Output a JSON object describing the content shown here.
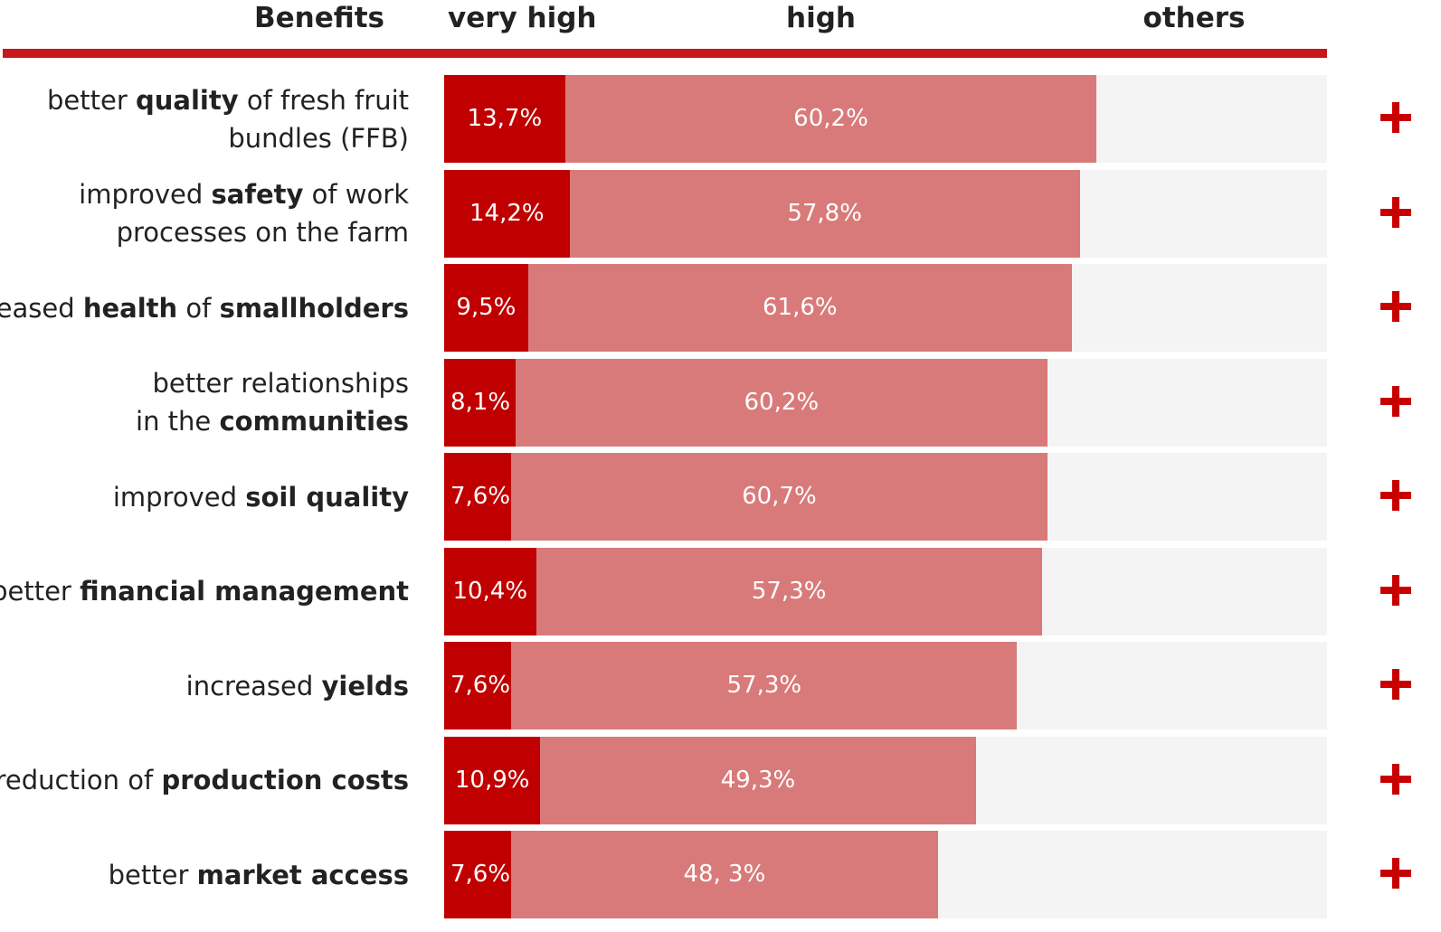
{
  "colors": {
    "very_high": "#c00000",
    "high": "#d97a7a",
    "others": "#f4f4f4",
    "rule": "#c8161d",
    "plus": "#c80000"
  },
  "icons": {
    "row_marker": "plus-icon"
  },
  "chart_data": {
    "type": "bar",
    "orientation": "horizontal",
    "stacked": true,
    "headers": {
      "categories": "Benefits",
      "very_high": "very high",
      "high": "high",
      "others": "others"
    },
    "categories": [
      "better quality of fresh fruit bundles (FFB)",
      "improved safety of work processes on the farm",
      "eased health of smallholders",
      "better relationships in the communities",
      "improved soil quality",
      "better financial management",
      "increased yields",
      "reduction of production costs",
      "better market access"
    ],
    "category_lines": [
      [
        [
          [
            "better ",
            false
          ],
          [
            "quality",
            true
          ],
          [
            " of fresh fruit",
            false
          ]
        ],
        [
          [
            "bundles (FFB)",
            false
          ]
        ]
      ],
      [
        [
          [
            "improved ",
            false
          ],
          [
            "safety",
            true
          ],
          [
            " of work",
            false
          ]
        ],
        [
          [
            "processes on the farm",
            false
          ]
        ]
      ],
      [
        [
          [
            "eased ",
            false
          ],
          [
            "health",
            true
          ],
          [
            " of ",
            false
          ],
          [
            "smallholders",
            true
          ]
        ]
      ],
      [
        [
          [
            "better relationships",
            false
          ]
        ],
        [
          [
            "in the ",
            false
          ],
          [
            "communities",
            true
          ]
        ]
      ],
      [
        [
          [
            "improved ",
            false
          ],
          [
            "soil quality",
            true
          ]
        ]
      ],
      [
        [
          [
            "better ",
            false
          ],
          [
            "financial management",
            true
          ]
        ]
      ],
      [
        [
          [
            "increased ",
            false
          ],
          [
            "yields",
            true
          ]
        ]
      ],
      [
        [
          [
            "reduction of ",
            false
          ],
          [
            "production costs",
            true
          ]
        ]
      ],
      [
        [
          [
            "better ",
            false
          ],
          [
            "market access",
            true
          ]
        ]
      ]
    ],
    "series": [
      {
        "name": "very high",
        "values": [
          13.7,
          14.2,
          9.5,
          8.1,
          7.6,
          10.4,
          7.6,
          10.9,
          7.6
        ],
        "labels": [
          "13,7%",
          "14,2%",
          "9,5%",
          "8,1%",
          "7,6%",
          "10,4%",
          "7,6%",
          "10,9%",
          "7,6%"
        ]
      },
      {
        "name": "high",
        "values": [
          60.2,
          57.8,
          61.6,
          60.2,
          60.7,
          57.3,
          57.3,
          49.3,
          48.3
        ],
        "labels": [
          "60,2%",
          "57,8%",
          "61,6%",
          "60,2%",
          "60,7%",
          "57,3%",
          "57,3%",
          "49,3%",
          "48, 3%"
        ]
      }
    ],
    "xlim": [
      0,
      100
    ],
    "grid": false,
    "legend": "top"
  }
}
